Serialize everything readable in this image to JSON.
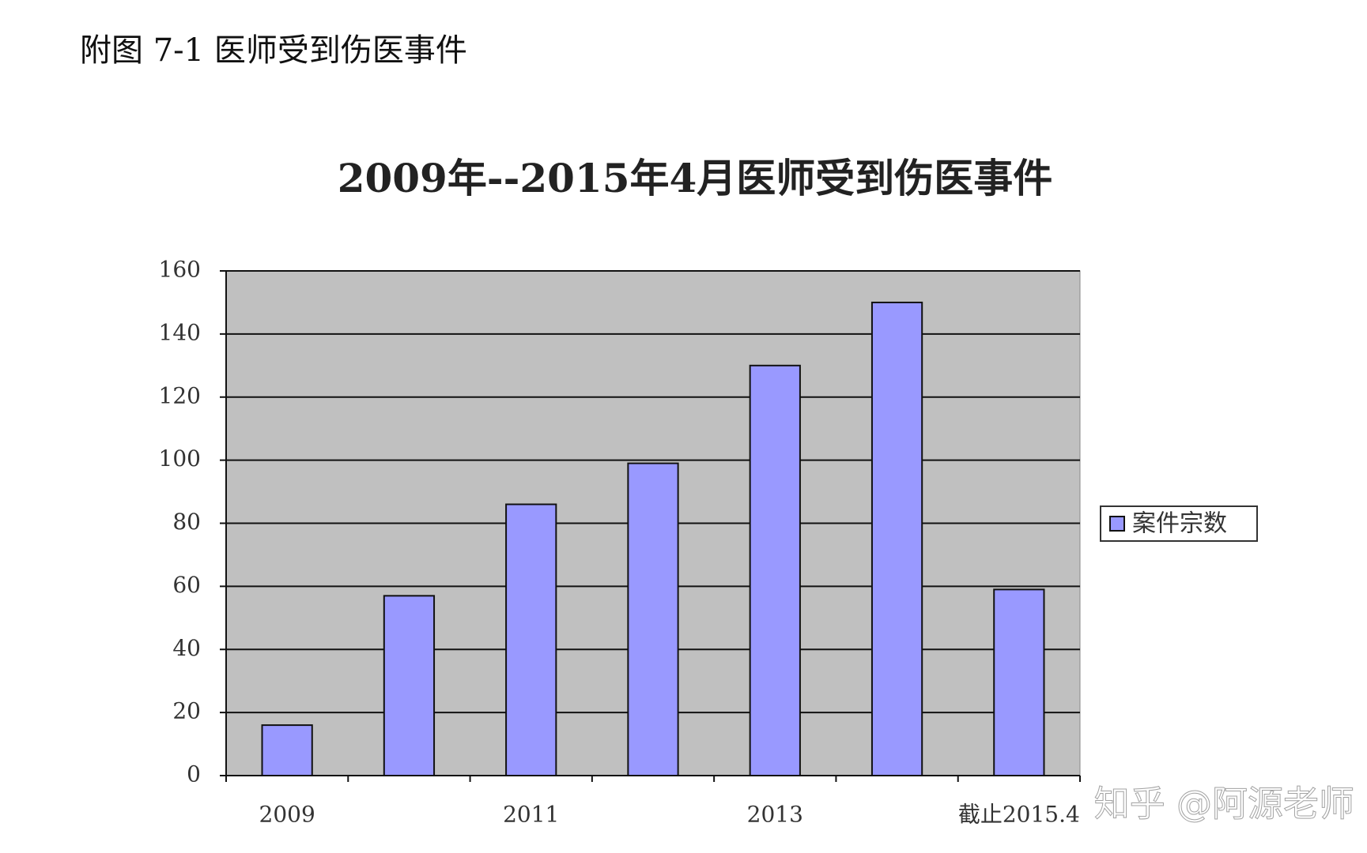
{
  "header": "附图 7-1 医师受到伤医事件",
  "chart_data": {
    "type": "bar",
    "title": "2009年--2015年4月医师受到伤医事件",
    "categories": [
      "2009",
      null,
      "2011",
      null,
      "2013",
      null,
      "截止2015.4"
    ],
    "series": [
      {
        "name": "案件宗数",
        "color": "#9999ff",
        "values": [
          16,
          57,
          86,
          99,
          130,
          150,
          59
        ]
      }
    ],
    "ylim": [
      0,
      160
    ],
    "yticks": [
      0,
      20,
      40,
      60,
      80,
      100,
      120,
      140,
      160
    ],
    "grid": true,
    "legend": "right"
  },
  "watermark": "知乎 @阿源老师"
}
